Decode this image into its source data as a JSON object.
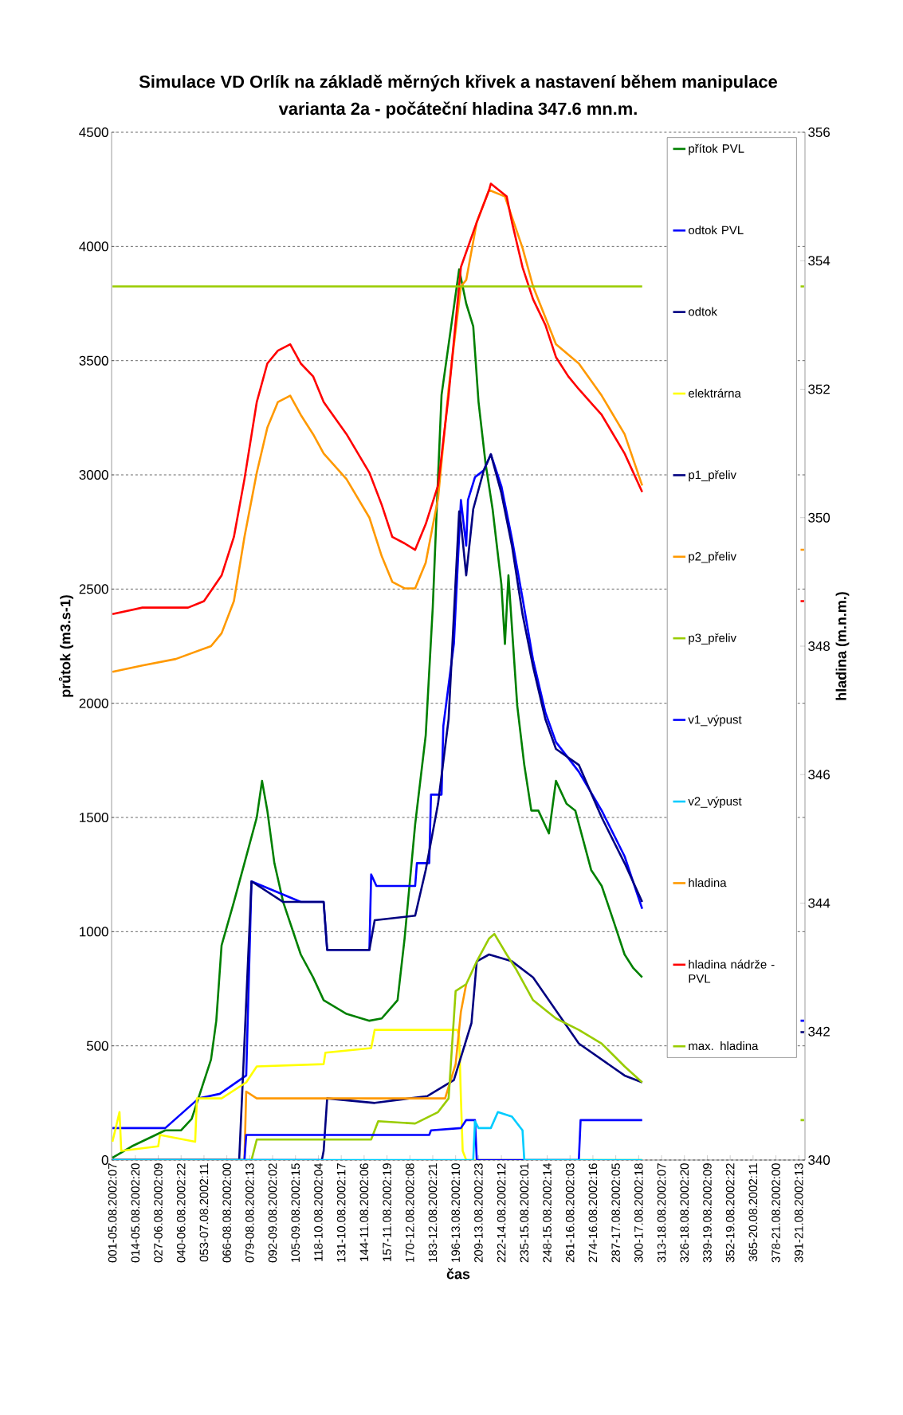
{
  "chart_data": {
    "type": "line",
    "title": "Simulace VD Orlík na základě měrných křivek a nastavení během manipulace",
    "subtitle": "varianta 2a - počáteční hladina 347.6 mn.m.",
    "xlabel": "čas",
    "ylabel": "průtok (m3.s-1)",
    "y2label": "hladina (m.n.m.)",
    "xlim": [
      "2002-08-05T06:30",
      "2002-08-21T16:30"
    ],
    "xticks": [
      {
        "value": "2002-08-05T07:00",
        "label": "001-05.08.2002:07"
      },
      {
        "value": "2002-08-05T20:00",
        "label": "014-05.08.2002:20"
      },
      {
        "value": "2002-08-06T09:00",
        "label": "027-06.08.2002:09"
      },
      {
        "value": "2002-08-06T22:00",
        "label": "040-06.08.2002:22"
      },
      {
        "value": "2002-08-07T11:00",
        "label": "053-07.08.2002:11"
      },
      {
        "value": "2002-08-08T00:00",
        "label": "066-08.08.2002:00"
      },
      {
        "value": "2002-08-08T13:00",
        "label": "079-08.08.2002:13"
      },
      {
        "value": "2002-08-09T02:00",
        "label": "092-09.08.2002:02"
      },
      {
        "value": "2002-08-09T15:00",
        "label": "105-09.08.2002:15"
      },
      {
        "value": "2002-08-10T04:00",
        "label": "118-10.08.2002:04"
      },
      {
        "value": "2002-08-10T17:00",
        "label": "131-10.08.2002:17"
      },
      {
        "value": "2002-08-11T06:00",
        "label": "144-11.08.2002:06"
      },
      {
        "value": "2002-08-11T19:00",
        "label": "157-11.08.2002:19"
      },
      {
        "value": "2002-08-12T08:00",
        "label": "170-12.08.2002:08"
      },
      {
        "value": "2002-08-12T21:00",
        "label": "183-12.08.2002:21"
      },
      {
        "value": "2002-08-13T10:00",
        "label": "196-13.08.2002:10"
      },
      {
        "value": "2002-08-13T23:00",
        "label": "209-13.08.2002:23"
      },
      {
        "value": "2002-08-14T12:00",
        "label": "222-14.08.2002:12"
      },
      {
        "value": "2002-08-15T01:00",
        "label": "235-15.08.2002:01"
      },
      {
        "value": "2002-08-15T14:00",
        "label": "248-15.08.2002:14"
      },
      {
        "value": "2002-08-16T03:00",
        "label": "261-16.08.2002:03"
      },
      {
        "value": "2002-08-16T16:00",
        "label": "274-16.08.2002:16"
      },
      {
        "value": "2002-08-17T05:00",
        "label": "287-17.08.2002:05"
      },
      {
        "value": "2002-08-17T18:00",
        "label": "300-17.08.2002:18"
      },
      {
        "value": "2002-08-18T07:00",
        "label": "313-18.08.2002:07"
      },
      {
        "value": "2002-08-18T20:00",
        "label": "326-18.08.2002:20"
      },
      {
        "value": "2002-08-19T09:00",
        "label": "339-19.08.2002:09"
      },
      {
        "value": "2002-08-19T22:00",
        "label": "352-19.08.2002:22"
      },
      {
        "value": "2002-08-20T11:00",
        "label": "365-20.08.2002:11"
      },
      {
        "value": "2002-08-21T00:00",
        "label": "378-21.08.2002:00"
      },
      {
        "value": "2002-08-21T13:00",
        "label": "391-21.08.2002:13"
      }
    ],
    "ylim": [
      0,
      4500
    ],
    "yticks": [
      0,
      500,
      1000,
      1500,
      2000,
      2500,
      3000,
      3500,
      4000,
      4500
    ],
    "y2lim": [
      340,
      356
    ],
    "y2ticks": [
      340,
      342,
      344,
      346,
      348,
      350,
      352,
      354,
      356
    ],
    "grid": "y",
    "legend": "right",
    "series": [
      {
        "name": "přítok PVL",
        "color": "#008000",
        "x": [
          "2002-08-05T07:00",
          "2002-08-05T18:00",
          "2002-08-06T13:00",
          "2002-08-06T22:00",
          "2002-08-07T04:00",
          "2002-08-07T15:00",
          "2002-08-07T18:00",
          "2002-08-07T21:00",
          "2002-08-08T04:00",
          "2002-08-08T10:00",
          "2002-08-08T17:00",
          "2002-08-08T20:00",
          "2002-08-08T23:00",
          "2002-08-09T03:00",
          "2002-08-09T08:00",
          "2002-08-09T18:00",
          "2002-08-10T01:00",
          "2002-08-10T07:00",
          "2002-08-10T20:00",
          "2002-08-11T09:00",
          "2002-08-11T16:00",
          "2002-08-12T01:00",
          "2002-08-12T05:00",
          "2002-08-12T11:00",
          "2002-08-12T17:00",
          "2002-08-12T21:00",
          "2002-08-13T00:00",
          "2002-08-13T02:00",
          "2002-08-13T08:00",
          "2002-08-13T12:00",
          "2002-08-13T16:00",
          "2002-08-13T20:00",
          "2002-08-13T23:00",
          "2002-08-14T03:00",
          "2002-08-14T07:00",
          "2002-08-14T12:00",
          "2002-08-14T14:00",
          "2002-08-14T16:00",
          "2002-08-14T21:00",
          "2002-08-15T01:00",
          "2002-08-15T05:00",
          "2002-08-15T09:00",
          "2002-08-15T15:00",
          "2002-08-15T19:00",
          "2002-08-16T01:00",
          "2002-08-16T06:00",
          "2002-08-16T15:00",
          "2002-08-16T21:00",
          "2002-08-17T04:00",
          "2002-08-17T10:00",
          "2002-08-17T15:00",
          "2002-08-17T20:00"
        ],
        "values": [
          10,
          60,
          130,
          130,
          180,
          440,
          610,
          940,
          1130,
          1300,
          1500,
          1660,
          1530,
          1300,
          1130,
          900,
          800,
          700,
          640,
          610,
          620,
          700,
          970,
          1470,
          1860,
          2420,
          2990,
          3350,
          3680,
          3900,
          3750,
          3650,
          3320,
          3050,
          2850,
          2520,
          2260,
          2560,
          1990,
          1730,
          1530,
          1530,
          1430,
          1660,
          1560,
          1530,
          1270,
          1200,
          1040,
          900,
          840,
          800
        ]
      },
      {
        "name": "odtok PVL",
        "color": "#0000ff",
        "x": [
          "2002-08-05T07:00",
          "2002-08-06T13:00",
          "2002-08-07T08:00",
          "2002-08-07T20:00",
          "2002-08-08T11:00",
          "2002-08-08T14:00",
          "2002-08-09T18:00",
          "2002-08-10T07:00",
          "2002-08-10T09:00",
          "2002-08-11T09:00",
          "2002-08-11T10:00",
          "2002-08-11T13:00",
          "2002-08-12T11:00",
          "2002-08-12T12:00",
          "2002-08-12T19:00",
          "2002-08-12T20:00",
          "2002-08-13T02:00",
          "2002-08-13T03:00",
          "2002-08-13T09:00",
          "2002-08-13T13:00",
          "2002-08-13T16:00",
          "2002-08-13T17:00",
          "2002-08-13T21:00",
          "2002-08-14T02:00",
          "2002-08-14T06:00",
          "2002-08-14T12:00",
          "2002-08-14T18:00",
          "2002-08-15T00:00",
          "2002-08-15T06:00",
          "2002-08-15T13:00",
          "2002-08-15T19:00",
          "2002-08-16T08:00",
          "2002-08-16T21:00",
          "2002-08-17T10:00",
          "2002-08-17T20:00",
          "2002-08-19T20:00",
          "2002-08-21T14:00",
          "2002-08-21T16:00"
        ],
        "values": [
          140,
          140,
          270,
          290,
          370,
          1220,
          1130,
          1130,
          920,
          920,
          1250,
          1200,
          1200,
          1300,
          1300,
          1600,
          1600,
          1900,
          2260,
          2890,
          2690,
          2890,
          2990,
          3020,
          3090,
          2950,
          2720,
          2460,
          2190,
          1960,
          1830,
          1700,
          1530,
          1330,
          1100,
          null,
          610,
          610
        ]
      },
      {
        "name": "odtok",
        "color": "#000080",
        "x": [
          "2002-08-05T07:00",
          "2002-08-08T07:00",
          "2002-08-08T09:00",
          "2002-08-08T14:00",
          "2002-08-09T08:00",
          "2002-08-10T07:00",
          "2002-08-10T09:00",
          "2002-08-11T09:00",
          "2002-08-11T12:00",
          "2002-08-12T11:00",
          "2002-08-12T17:00",
          "2002-08-13T00:00",
          "2002-08-13T06:00",
          "2002-08-13T12:00",
          "2002-08-13T13:00",
          "2002-08-13T16:00",
          "2002-08-13T20:00",
          "2002-08-14T02:00",
          "2002-08-14T06:00",
          "2002-08-14T12:00",
          "2002-08-14T18:00",
          "2002-08-15T00:00",
          "2002-08-15T06:00",
          "2002-08-15T13:00",
          "2002-08-15T19:00",
          "2002-08-16T08:00",
          "2002-08-16T21:00",
          "2002-08-17T10:00",
          "2002-08-17T20:00",
          "2002-08-19T20:00",
          "2002-08-21T14:00",
          "2002-08-21T16:00"
        ],
        "values": [
          0,
          0,
          340,
          1220,
          1130,
          1130,
          920,
          920,
          1050,
          1070,
          1270,
          1560,
          1930,
          2840,
          2790,
          2560,
          2850,
          3020,
          3090,
          2920,
          2690,
          2390,
          2160,
          1930,
          1800,
          1730,
          1500,
          1300,
          1130,
          null,
          560,
          560
        ]
      },
      {
        "name": "elektrárna",
        "color": "#ffff00",
        "x": [
          "2002-08-05T07:00",
          "2002-08-05T11:00",
          "2002-08-05T12:00",
          "2002-08-06T09:00",
          "2002-08-06T10:00",
          "2002-08-07T06:00",
          "2002-08-07T07:00",
          "2002-08-07T21:00",
          "2002-08-08T11:00",
          "2002-08-08T17:00",
          "2002-08-10T07:00",
          "2002-08-10T08:00",
          "2002-08-11T10:00",
          "2002-08-11T12:00",
          "2002-08-13T11:00",
          "2002-08-13T12:00",
          "2002-08-13T13:00",
          "2002-08-13T14:00",
          "2002-08-13T16:00",
          "2002-08-17T20:00"
        ],
        "values": [
          80,
          210,
          40,
          60,
          110,
          80,
          270,
          270,
          340,
          410,
          420,
          470,
          490,
          570,
          570,
          540,
          270,
          40,
          0,
          0
        ]
      },
      {
        "name": "p1_přeliv",
        "color": "#000080",
        "x": [
          "2002-08-05T07:00",
          "2002-08-10T06:00",
          "2002-08-10T07:00",
          "2002-08-10T09:00",
          "2002-08-11T12:00",
          "2002-08-12T18:00",
          "2002-08-13T09:00",
          "2002-08-13T19:00",
          "2002-08-13T22:00",
          "2002-08-14T05:00",
          "2002-08-14T18:00",
          "2002-08-15T06:00",
          "2002-08-16T08:00",
          "2002-08-17T10:00",
          "2002-08-17T20:00"
        ],
        "values": [
          0,
          0,
          40,
          270,
          250,
          280,
          350,
          600,
          870,
          900,
          870,
          800,
          510,
          370,
          340
        ]
      },
      {
        "name": "p2_přeliv",
        "color": "#ff9900",
        "x": [
          "2002-08-05T07:00",
          "2002-08-08T10:00",
          "2002-08-08T11:00",
          "2002-08-08T17:00",
          "2002-08-13T04:00",
          "2002-08-13T10:00",
          "2002-08-13T13:00",
          "2002-08-13T16:00"
        ],
        "values": [
          0,
          0,
          300,
          270,
          270,
          420,
          650,
          770
        ]
      },
      {
        "name": "p3_přeliv",
        "color": "#99cc00",
        "x": [
          "2002-08-05T07:00",
          "2002-08-08T14:00",
          "2002-08-08T17:00",
          "2002-08-11T10:00",
          "2002-08-11T14:00",
          "2002-08-12T11:00",
          "2002-08-13T00:00",
          "2002-08-13T06:00",
          "2002-08-13T10:00",
          "2002-08-13T16:00",
          "2002-08-13T22:00",
          "2002-08-14T05:00",
          "2002-08-14T08:00",
          "2002-08-14T15:00",
          "2002-08-14T20:00",
          "2002-08-15T06:00",
          "2002-08-15T19:00",
          "2002-08-16T08:00",
          "2002-08-16T21:00",
          "2002-08-17T10:00",
          "2002-08-17T20:00",
          "2002-08-19T20:00",
          "2002-08-21T14:00",
          "2002-08-21T16:00"
        ],
        "values": [
          0,
          0,
          90,
          90,
          170,
          160,
          210,
          270,
          740,
          770,
          870,
          970,
          990,
          900,
          840,
          700,
          620,
          570,
          510,
          410,
          340,
          null,
          175,
          175
        ]
      },
      {
        "name": "v1_výpust",
        "color": "#0000ff",
        "x": [
          "2002-08-05T07:00",
          "2002-08-08T10:00",
          "2002-08-08T11:00",
          "2002-08-12T19:00",
          "2002-08-12T20:00",
          "2002-08-13T13:00",
          "2002-08-13T16:00",
          "2002-08-13T21:00",
          "2002-08-13T22:00",
          "2002-08-16T08:00",
          "2002-08-16T09:00",
          "2002-08-17T20:00"
        ],
        "values": [
          0,
          0,
          110,
          110,
          130,
          140,
          175,
          175,
          0,
          0,
          175,
          175
        ]
      },
      {
        "name": "v2_výpust",
        "color": "#00ccff",
        "x": [
          "2002-08-05T07:00",
          "2002-08-13T20:00",
          "2002-08-13T21:00",
          "2002-08-13T23:00",
          "2002-08-14T06:00",
          "2002-08-14T10:00",
          "2002-08-14T18:00",
          "2002-08-15T00:00",
          "2002-08-15T01:00",
          "2002-08-17T20:00"
        ],
        "values": [
          0,
          0,
          170,
          140,
          140,
          210,
          190,
          130,
          0,
          0
        ]
      },
      {
        "name": "hladina",
        "color": "#ff9900",
        "axis": "y2",
        "x": [
          "2002-08-05T07:00",
          "2002-08-06T00:00",
          "2002-08-06T19:00",
          "2002-08-07T15:00",
          "2002-08-07T21:00",
          "2002-08-08T04:00",
          "2002-08-08T10:00",
          "2002-08-08T17:00",
          "2002-08-08T23:00",
          "2002-08-09T05:00",
          "2002-08-09T12:00",
          "2002-08-09T18:00",
          "2002-08-10T01:00",
          "2002-08-10T07:00",
          "2002-08-10T20:00",
          "2002-08-11T09:00",
          "2002-08-11T16:00",
          "2002-08-11T22:00",
          "2002-08-12T05:00",
          "2002-08-12T11:00",
          "2002-08-12T17:00",
          "2002-08-13T00:00",
          "2002-08-13T06:00",
          "2002-08-13T13:00",
          "2002-08-13T16:00",
          "2002-08-13T22:00",
          "2002-08-14T05:00",
          "2002-08-14T14:00",
          "2002-08-15T00:00",
          "2002-08-15T06:00",
          "2002-08-15T19:00",
          "2002-08-16T08:00",
          "2002-08-16T21:00",
          "2002-08-17T10:00",
          "2002-08-17T20:00",
          "2002-08-19T20:00",
          "2002-08-21T14:00",
          "2002-08-21T16:00"
        ],
        "values": [
          347.6,
          347.7,
          347.8,
          348.0,
          348.2,
          348.7,
          349.7,
          350.7,
          351.4,
          351.8,
          351.9,
          351.6,
          351.3,
          351.0,
          350.6,
          350.0,
          349.4,
          349.0,
          348.9,
          348.9,
          349.3,
          350.3,
          352.0,
          353.6,
          353.7,
          354.6,
          355.1,
          355.0,
          354.2,
          353.6,
          352.7,
          352.4,
          351.9,
          351.3,
          350.5,
          null,
          349.5,
          349.5
        ]
      },
      {
        "name": "hladina nádrže - PVL",
        "color": "#ff0000",
        "axis": "y2",
        "x": [
          "2002-08-05T07:00",
          "2002-08-06T00:00",
          "2002-08-07T02:00",
          "2002-08-07T11:00",
          "2002-08-07T21:00",
          "2002-08-08T04:00",
          "2002-08-08T10:00",
          "2002-08-08T17:00",
          "2002-08-08T23:00",
          "2002-08-09T05:00",
          "2002-08-09T12:00",
          "2002-08-09T18:00",
          "2002-08-10T01:00",
          "2002-08-10T07:00",
          "2002-08-10T20:00",
          "2002-08-11T09:00",
          "2002-08-11T16:00",
          "2002-08-11T22:00",
          "2002-08-12T05:00",
          "2002-08-12T11:00",
          "2002-08-12T17:00",
          "2002-08-13T00:00",
          "2002-08-13T06:00",
          "2002-08-13T13:00",
          "2002-08-13T22:00",
          "2002-08-14T05:00",
          "2002-08-14T06:00",
          "2002-08-14T15:00",
          "2002-08-14T18:00",
          "2002-08-15T00:00",
          "2002-08-15T06:00",
          "2002-08-15T13:00",
          "2002-08-15T19:00",
          "2002-08-16T02:00",
          "2002-08-16T08:00",
          "2002-08-16T21:00",
          "2002-08-17T10:00",
          "2002-08-17T20:00",
          "2002-08-19T20:00",
          "2002-08-21T14:00",
          "2002-08-21T16:00"
        ],
        "values": [
          348.5,
          348.6,
          348.6,
          348.7,
          349.1,
          349.7,
          350.6,
          351.8,
          352.4,
          352.6,
          352.7,
          352.4,
          352.2,
          351.8,
          351.3,
          350.7,
          350.2,
          349.7,
          349.6,
          349.5,
          349.9,
          350.5,
          351.9,
          353.9,
          354.6,
          355.1,
          355.2,
          355.0,
          354.6,
          353.9,
          353.4,
          353.0,
          352.5,
          352.2,
          352.0,
          351.6,
          351.0,
          350.4,
          null,
          348.7,
          348.7
        ]
      },
      {
        "name": "max. hladina",
        "color": "#99cc00",
        "axis": "y2",
        "x": [
          "2002-08-05T07:00",
          "2002-08-17T20:00",
          "2002-08-19T20:00",
          "2002-08-21T14:00",
          "2002-08-21T16:00"
        ],
        "values": [
          353.6,
          353.6,
          null,
          353.6,
          353.6
        ]
      }
    ]
  }
}
